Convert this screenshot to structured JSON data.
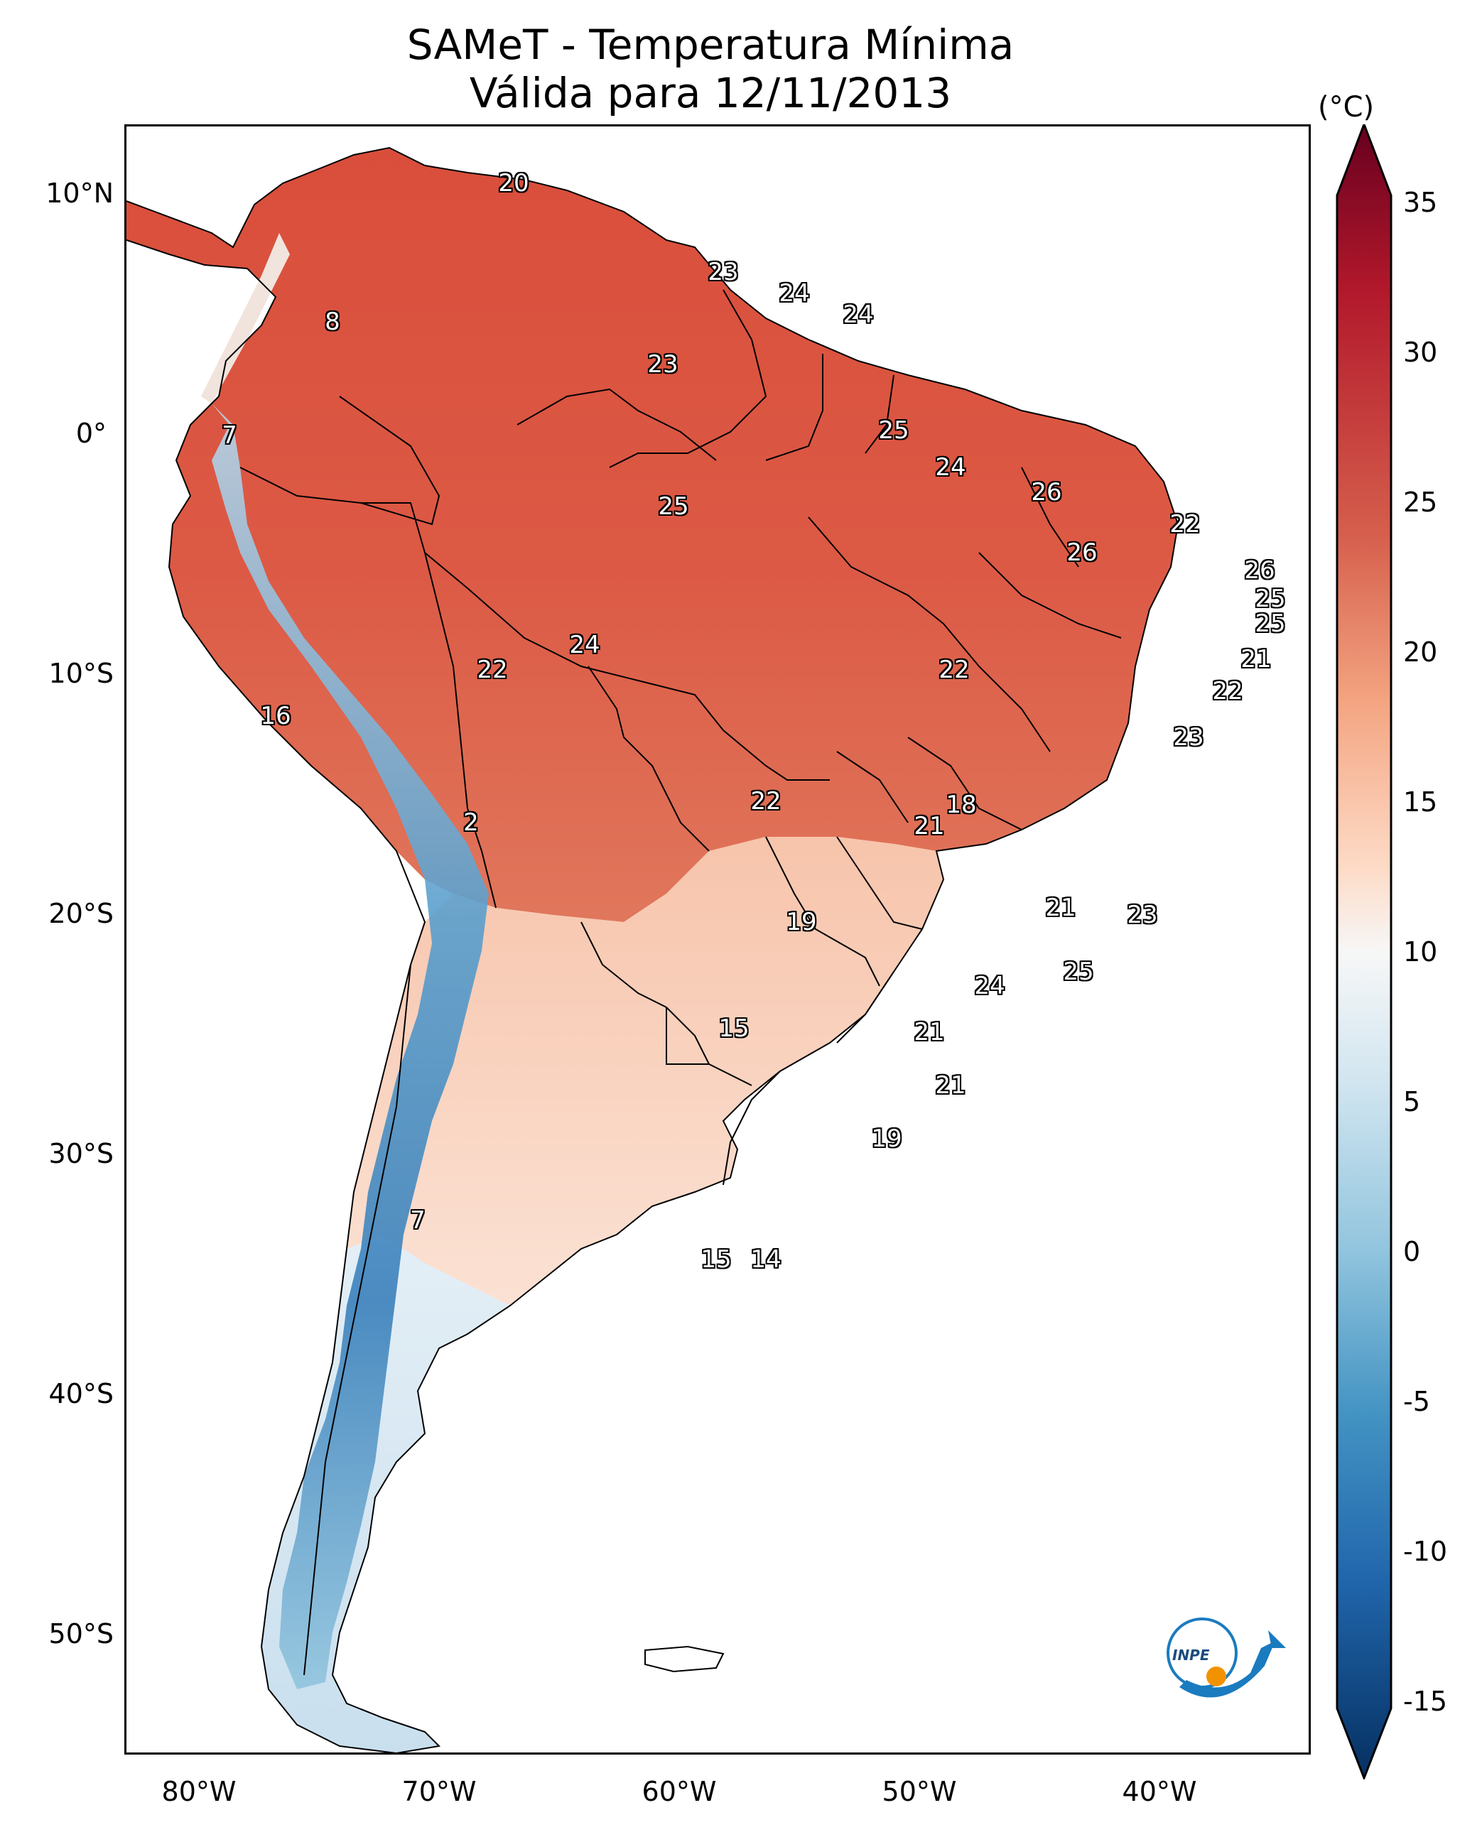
{
  "title": {
    "line1": "SAMeT - Temperatura Mínima",
    "line2": "Válida para 12/11/2013"
  },
  "axes": {
    "lat_labels": [
      "10°N",
      "0°",
      "10°S",
      "20°S",
      "30°S",
      "40°S",
      "50°S"
    ],
    "lon_labels": [
      "80°W",
      "70°W",
      "60°W",
      "50°W",
      "40°W"
    ]
  },
  "colorbar": {
    "unit": "(°C)",
    "ticks": [
      "35",
      "30",
      "25",
      "20",
      "15",
      "10",
      "5",
      "0",
      "-5",
      "-10",
      "-15"
    ],
    "colors": {
      "max": "#67001f",
      "hot": "#b2182b",
      "warm": "#d6604d",
      "mild": "#f4a582",
      "cool": "#fddbc7",
      "neutral": "#f7f7f7",
      "cold": "#d1e5f0",
      "colder": "#92c5de",
      "frigid": "#4393c3",
      "deep": "#2166ac",
      "min": "#053061"
    }
  },
  "contour_labels": [
    {
      "text": "20"
    },
    {
      "text": "23"
    },
    {
      "text": "24"
    },
    {
      "text": "24"
    },
    {
      "text": "8"
    },
    {
      "text": "23"
    },
    {
      "text": "7"
    },
    {
      "text": "25"
    },
    {
      "text": "24"
    },
    {
      "text": "26"
    },
    {
      "text": "22"
    },
    {
      "text": "25"
    },
    {
      "text": "26"
    },
    {
      "text": "26"
    },
    {
      "text": "25"
    },
    {
      "text": "25"
    },
    {
      "text": "24"
    },
    {
      "text": "22"
    },
    {
      "text": "21"
    },
    {
      "text": "22"
    },
    {
      "text": "22"
    },
    {
      "text": "16"
    },
    {
      "text": "23"
    },
    {
      "text": "18"
    },
    {
      "text": "22"
    },
    {
      "text": "2"
    },
    {
      "text": "21"
    },
    {
      "text": "21"
    },
    {
      "text": "19"
    },
    {
      "text": "23"
    },
    {
      "text": "25"
    },
    {
      "text": "24"
    },
    {
      "text": "15"
    },
    {
      "text": "21"
    },
    {
      "text": "21"
    },
    {
      "text": "19"
    },
    {
      "text": "7"
    },
    {
      "text": "15"
    },
    {
      "text": "14"
    }
  ],
  "logo": {
    "text": "INPE",
    "icon": "inpe-logo-icon"
  }
}
